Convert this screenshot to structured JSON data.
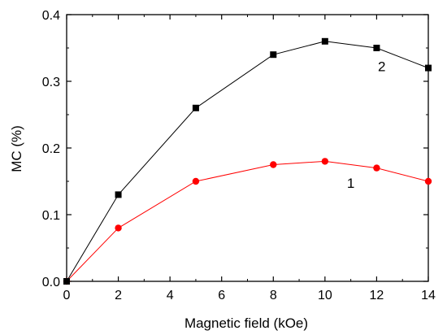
{
  "chart_data": {
    "type": "line",
    "title": "",
    "xlabel": "Magnetic field (kOe)",
    "ylabel": "MC (%)",
    "xlim": [
      0,
      14
    ],
    "ylim": [
      0.0,
      0.4
    ],
    "xticks": [
      0,
      2,
      4,
      6,
      8,
      10,
      12,
      14
    ],
    "yticks": [
      0.0,
      0.1,
      0.2,
      0.3,
      0.4
    ],
    "xtick_labels": [
      "0",
      "2",
      "4",
      "6",
      "8",
      "10",
      "12",
      "14"
    ],
    "ytick_labels": [
      "0.0",
      "0.1",
      "0.2",
      "0.3",
      "0.4"
    ],
    "grid": false,
    "legend": "none",
    "series": [
      {
        "label": "1",
        "color": "#ff0000",
        "marker": "circle",
        "x": [
          0,
          2,
          5,
          8,
          10,
          12,
          14
        ],
        "y": [
          0.0,
          0.08,
          0.15,
          0.175,
          0.18,
          0.17,
          0.15
        ]
      },
      {
        "label": "2",
        "color": "#000000",
        "marker": "square",
        "x": [
          0,
          2,
          5,
          8,
          10,
          12,
          14
        ],
        "y": [
          0.0,
          0.13,
          0.26,
          0.34,
          0.36,
          0.35,
          0.32
        ]
      }
    ]
  }
}
